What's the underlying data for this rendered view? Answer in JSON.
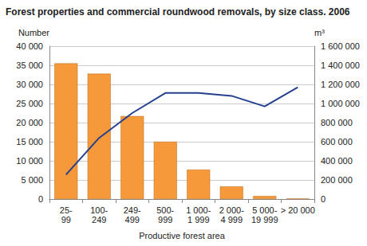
{
  "chart_data": {
    "type": "bar",
    "title": "Forest properties and commercial roundwood removals, by size class. 2006",
    "x_label": "Productive forest area",
    "y_label": "Number",
    "y2_label": "m³",
    "categories": [
      "25-99",
      "100-249",
      "249-499",
      "500-999",
      "1 000-1 999",
      "2 000-4 999",
      "5 000-19 999",
      "> 20 000"
    ],
    "series": [
      {
        "type": "bar",
        "color": "#f5993a",
        "values": [
          35500,
          32800,
          21700,
          15000,
          7700,
          3300,
          800,
          100
        ]
      },
      {
        "type": "line",
        "axis": "y2",
        "color": "#24408e",
        "values": [
          255000,
          640000,
          900000,
          1110000,
          1110000,
          1080000,
          970000,
          1170000
        ]
      }
    ],
    "ylim": [
      0,
      40000
    ],
    "yticks": [
      0,
      {
        "value": 5000,
        "label": "5 000"
      },
      {
        "value": 10000,
        "label": "10 000"
      },
      {
        "value": 15000,
        "label": "15 000"
      },
      {
        "value": 20000,
        "label": "20 000"
      },
      {
        "value": 25000,
        "label": "25 000"
      },
      {
        "value": 30000,
        "label": "30 000"
      },
      {
        "value": 35000,
        "label": "35 000"
      },
      {
        "value": 40000,
        "label": "40 000"
      }
    ],
    "y2lim": [
      0,
      1600000
    ],
    "y2ticks": [
      0,
      {
        "value": 200000,
        "label": "200 000"
      },
      {
        "value": 400000,
        "label": "400 000"
      },
      {
        "value": 600000,
        "label": "600 000"
      },
      {
        "value": 800000,
        "label": "800 000"
      },
      {
        "value": 1000000,
        "label": "1 000 000"
      },
      {
        "value": 1200000,
        "label": "1 200 000"
      },
      {
        "value": 1400000,
        "label": "1 400 000"
      },
      {
        "value": 1600000,
        "label": "1 600 000"
      }
    ],
    "grid": true
  }
}
